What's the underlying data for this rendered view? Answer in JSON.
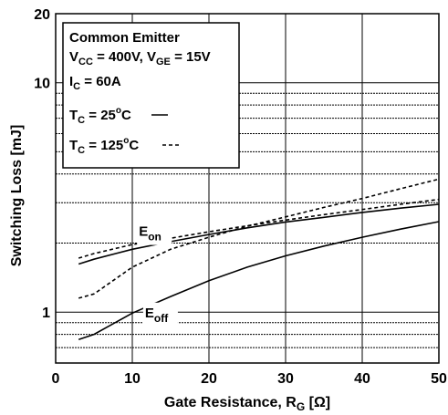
{
  "chart_data": {
    "type": "line",
    "xlabel": {
      "main": "Gate Resistance, R",
      "sub": "G",
      "unit": " [Ω]"
    },
    "ylabel": "Switching Loss [mJ]",
    "xlim": [
      0,
      50
    ],
    "ylim": [
      0.6,
      20
    ],
    "yscale": "log",
    "grid": true,
    "x_ticks": [
      "0",
      "10",
      "20",
      "30",
      "40",
      "50"
    ],
    "y_ticks": [
      {
        "value": 1,
        "label": "1"
      },
      {
        "value": 10,
        "label": "10"
      },
      {
        "value": 20,
        "label": "20"
      }
    ],
    "legend": {
      "position": "top-left",
      "title": "Common Emitter",
      "line2": [
        {
          "text": "V",
          "sub": "CC"
        },
        {
          "text": " = 400V, V"
        },
        {
          "text": "",
          "sub": "GE"
        },
        {
          "text": " = 15V"
        }
      ],
      "line3": [
        {
          "text": "I",
          "sub": "C"
        },
        {
          "text": " = 60A"
        }
      ],
      "entries": [
        {
          "base": "T",
          "sub": "C",
          "value": " = 25",
          "sup": "o",
          "unit": "C",
          "style": "solid"
        },
        {
          "base": "T",
          "sub": "C",
          "value": " = 125",
          "sup": "o",
          "unit": "C",
          "style": "dashed"
        }
      ]
    },
    "annotations": [
      {
        "base": "E",
        "sub": "on",
        "x": 13.0,
        "y": 2.15
      },
      {
        "base": "E",
        "sub": "off",
        "x": 13.8,
        "y": 0.95
      }
    ],
    "series": [
      {
        "curve": "Eon",
        "temperature": "25",
        "style": "solid",
        "x": [
          3,
          5,
          10,
          15,
          20,
          25,
          30,
          35,
          40,
          45,
          50
        ],
        "y": [
          1.62,
          1.7,
          1.88,
          2.03,
          2.18,
          2.33,
          2.47,
          2.59,
          2.72,
          2.84,
          2.95
        ]
      },
      {
        "curve": "Eon",
        "temperature": "125",
        "style": "dashed",
        "x": [
          3,
          5,
          10,
          15,
          20,
          25,
          30,
          35,
          40,
          45,
          50
        ],
        "y": [
          1.72,
          1.8,
          1.97,
          2.1,
          2.24,
          2.38,
          2.52,
          2.66,
          2.8,
          2.95,
          3.1
        ]
      },
      {
        "curve": "Eoff",
        "temperature": "25",
        "style": "solid",
        "x": [
          3,
          5,
          10,
          15,
          20,
          25,
          30,
          35,
          40,
          45,
          50
        ],
        "y": [
          0.76,
          0.8,
          0.99,
          1.17,
          1.37,
          1.57,
          1.76,
          1.94,
          2.12,
          2.3,
          2.48
        ]
      },
      {
        "curve": "Eoff",
        "temperature": "125",
        "style": "dashed",
        "x": [
          3,
          5,
          10,
          15,
          20,
          25,
          30,
          35,
          40,
          45,
          50
        ],
        "y": [
          1.15,
          1.2,
          1.57,
          1.88,
          2.12,
          2.37,
          2.6,
          2.86,
          3.13,
          3.45,
          3.8
        ]
      }
    ]
  }
}
